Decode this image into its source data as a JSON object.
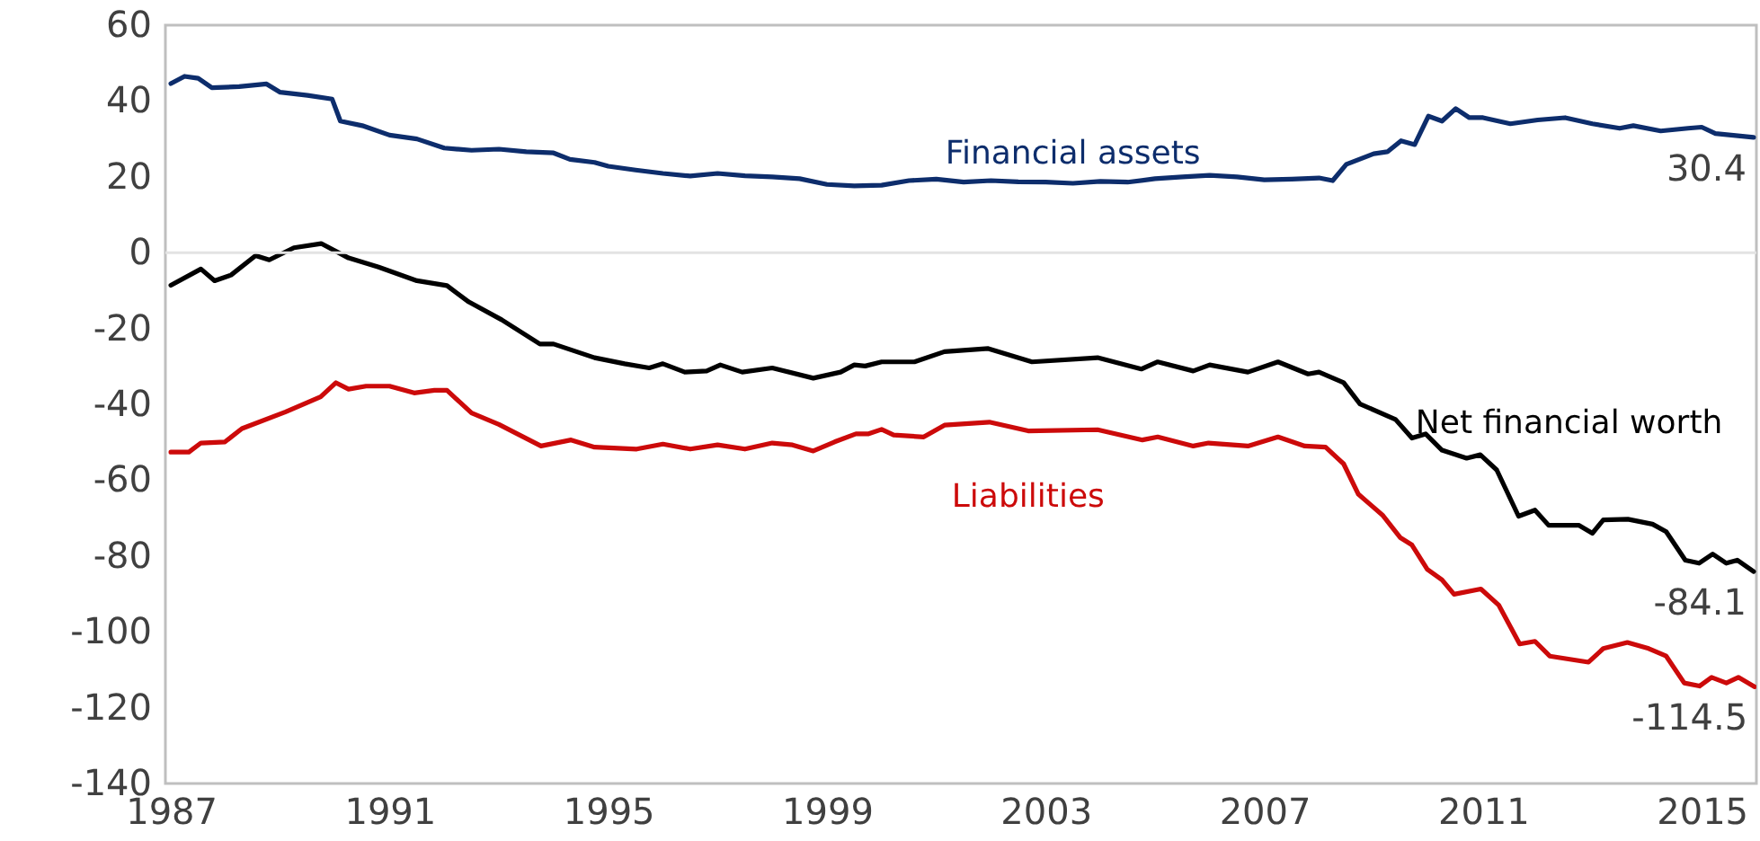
{
  "chart_data": {
    "type": "line",
    "xlim": [
      1986.9,
      2016.0
    ],
    "xticks": [
      1987,
      1991,
      1995,
      1999,
      2003,
      2007,
      2011,
      2015
    ],
    "ylim": [
      -140,
      60
    ],
    "yticks": [
      -140,
      -120,
      -100,
      -80,
      -60,
      -40,
      -20,
      0,
      20,
      40,
      60
    ],
    "ref_lines": [
      {
        "axis": "y",
        "value": 0,
        "color": "#e3e3e3"
      }
    ],
    "series": [
      {
        "name": "Financial assets",
        "color": "#0d2d6c",
        "x": [
          1987,
          1987.25,
          1987.5,
          1987.75,
          1988.25,
          1988.75,
          1989,
          1989.5,
          1989.95,
          1990.1,
          1990.5,
          1991,
          1991.5,
          1992,
          1992.5,
          1993,
          1993.5,
          1994,
          1994.3,
          1994.75,
          1995,
          1995.5,
          1996,
          1996.5,
          1997,
          1997.5,
          1998,
          1998.5,
          1999,
          1999.5,
          2000,
          2000.5,
          2001,
          2001.5,
          2002,
          2002.5,
          2003,
          2003.5,
          2004,
          2004.5,
          2005,
          2005.5,
          2006,
          2006.5,
          2007,
          2007.5,
          2008,
          2008.25,
          2008.5,
          2009,
          2009.25,
          2009.5,
          2009.75,
          2010,
          2010.25,
          2010.5,
          2010.75,
          2011,
          2011.5,
          2012,
          2012.5,
          2013,
          2013.5,
          2013.75,
          2014.25,
          2014.75,
          2015,
          2015.25,
          2015.95
        ],
        "value_labels": [
          null,
          null,
          null,
          null,
          null,
          null,
          null,
          null,
          null,
          null,
          null,
          null,
          null,
          null,
          null,
          null,
          null,
          null,
          null,
          null,
          null,
          null,
          null,
          null,
          null,
          null,
          null,
          null,
          null,
          null,
          null,
          null,
          null,
          null,
          null,
          null,
          null,
          null,
          null,
          null,
          null,
          null,
          null,
          null,
          null,
          null,
          null,
          null,
          null,
          null,
          null,
          null,
          null,
          null,
          null,
          null,
          null,
          null,
          null,
          null,
          null,
          null,
          null,
          null,
          null,
          null,
          null,
          null,
          "30.4"
        ],
        "values": [
          44.6,
          46.5,
          46,
          43.5,
          43.8,
          44.5,
          42.3,
          41.5,
          40.5,
          34.7,
          33.5,
          31,
          30,
          27.6,
          27,
          27.3,
          26.6,
          26.3,
          24.6,
          23.8,
          22.8,
          21.8,
          20.9,
          20.2,
          20.9,
          20.3,
          20,
          19.5,
          18,
          17.6,
          17.8,
          19,
          19.4,
          18.6,
          19,
          18.7,
          18.6,
          18.3,
          18.8,
          18.6,
          19.5,
          20,
          20.4,
          20,
          19.2,
          19.4,
          19.7,
          19,
          23.3,
          26.1,
          26.6,
          29.5,
          28.5,
          36,
          34.7,
          38,
          35.6,
          35.6,
          34,
          35,
          35.6,
          34,
          32.8,
          33.5,
          32.1,
          32.8,
          33.1,
          31.4,
          30.4
        ]
      },
      {
        "name": "Net financial worth",
        "color": "#000000",
        "x": [
          1987,
          1987.55,
          1987.8,
          1988.1,
          1988.55,
          1988.8,
          1989.25,
          1989.75,
          1990.25,
          1990.8,
          1991.5,
          1992.05,
          1992.45,
          1993.05,
          1993.75,
          1994,
          1994.75,
          1995.3,
          1995.75,
          1996,
          1996.4,
          1996.8,
          1997.05,
          1997.45,
          1998,
          1998.75,
          1999.25,
          1999.5,
          1999.7,
          2000,
          2000.6,
          2001.15,
          2001.95,
          2002.75,
          2003.95,
          2004.75,
          2005.05,
          2005.7,
          2006,
          2006.7,
          2007.25,
          2007.8,
          2008,
          2008.45,
          2008.75,
          2009.4,
          2009.7,
          2009.95,
          2010.25,
          2010.7,
          2010.95,
          2011.25,
          2011.65,
          2011.95,
          2012.2,
          2012.75,
          2013,
          2013.2,
          2013.65,
          2014.1,
          2014.35,
          2014.7,
          2014.95,
          2015.2,
          2015.45,
          2015.65,
          2015.95
        ],
        "value_labels": [
          null,
          null,
          null,
          null,
          null,
          null,
          null,
          null,
          null,
          null,
          null,
          null,
          null,
          null,
          null,
          null,
          null,
          null,
          null,
          null,
          null,
          null,
          null,
          null,
          null,
          null,
          null,
          null,
          null,
          null,
          null,
          null,
          null,
          null,
          null,
          null,
          null,
          null,
          null,
          null,
          null,
          null,
          null,
          null,
          null,
          null,
          null,
          null,
          null,
          null,
          null,
          null,
          null,
          null,
          null,
          null,
          null,
          null,
          null,
          null,
          null,
          null,
          null,
          null,
          null,
          null,
          "-84.1"
        ],
        "values": [
          -8.6,
          -4.3,
          -7.4,
          -5.9,
          -0.8,
          -1.9,
          1.3,
          2.4,
          -1.4,
          -3.8,
          -7.4,
          -8.7,
          -13,
          -17.7,
          -24.1,
          -24.1,
          -27.7,
          -29.3,
          -30.4,
          -29.3,
          -31.5,
          -31.2,
          -29.6,
          -31.5,
          -30.4,
          -33.1,
          -31.5,
          -29.6,
          -29.9,
          -28.8,
          -28.8,
          -26.1,
          -25.3,
          -28.8,
          -27.7,
          -30.7,
          -28.8,
          -31.2,
          -29.6,
          -31.5,
          -28.8,
          -32,
          -31.5,
          -34.3,
          -39.9,
          -44,
          -48.9,
          -47.8,
          -52.1,
          -54.2,
          -53.3,
          -57.3,
          -69.5,
          -67.9,
          -71.9,
          -71.9,
          -74,
          -70.5,
          -70.3,
          -71.6,
          -73.6,
          -81.1,
          -81.9,
          -79.5,
          -81.9,
          -81.1,
          -84.1
        ]
      },
      {
        "name": "Liabilities",
        "color": "#cc0a0a",
        "x": [
          1987,
          1987.33,
          1987.55,
          1987.99,
          1988.3,
          1989.1,
          1989.74,
          1990.02,
          1990.25,
          1990.57,
          1991,
          1991.45,
          1991.82,
          1992.05,
          1992.5,
          1993,
          1993.77,
          1994.32,
          1994.75,
          1995.52,
          1996,
          1996.5,
          1997,
          1997.5,
          1998,
          1998.37,
          1998.75,
          1999.14,
          1999.53,
          1999.75,
          2000,
          2000.22,
          2000.77,
          2001.15,
          2001.97,
          2002.68,
          2003.95,
          2004.77,
          2005.05,
          2005.7,
          2005.98,
          2006.7,
          2007.25,
          2007.74,
          2008.12,
          2008.45,
          2008.72,
          2009.16,
          2009.49,
          2009.7,
          2009.98,
          2010.25,
          2010.47,
          2010.96,
          2011.29,
          2011.67,
          2011.95,
          2012.22,
          2012.93,
          2013.2,
          2013.64,
          2014.03,
          2014.35,
          2014.68,
          2014.96,
          2015.18,
          2015.45,
          2015.67,
          2015.97
        ],
        "value_labels": [
          null,
          null,
          null,
          null,
          null,
          null,
          null,
          null,
          null,
          null,
          null,
          null,
          null,
          null,
          null,
          null,
          null,
          null,
          null,
          null,
          null,
          null,
          null,
          null,
          null,
          null,
          null,
          null,
          null,
          null,
          null,
          null,
          null,
          null,
          null,
          null,
          null,
          null,
          null,
          null,
          null,
          null,
          null,
          null,
          null,
          null,
          null,
          null,
          null,
          null,
          null,
          null,
          null,
          null,
          null,
          null,
          null,
          null,
          null,
          null,
          null,
          null,
          null,
          null,
          null,
          null,
          null,
          null,
          "-114.5"
        ],
        "values": [
          -52.6,
          -52.6,
          -50.2,
          -49.9,
          -46.4,
          -42,
          -38,
          -34.3,
          -36,
          -35.2,
          -35.2,
          -37,
          -36.3,
          -36.3,
          -42.3,
          -45.3,
          -51,
          -49.4,
          -51.3,
          -51.8,
          -50.5,
          -51.8,
          -50.7,
          -51.8,
          -50.2,
          -50.7,
          -52.3,
          -49.9,
          -47.8,
          -47.8,
          -46.6,
          -48.1,
          -48.6,
          -45.5,
          -44.7,
          -47,
          -46.7,
          -49.4,
          -48.6,
          -51,
          -50.2,
          -51,
          -48.6,
          -51,
          -51.3,
          -55.7,
          -63.7,
          -69.2,
          -75.2,
          -77.1,
          -83.5,
          -86.3,
          -90.1,
          -88.7,
          -93,
          -103.2,
          -102.5,
          -106.4,
          -108,
          -104.4,
          -102.8,
          -104.4,
          -106.4,
          -113.5,
          -114.3,
          -112,
          -113.5,
          -112,
          -114.5
        ]
      }
    ]
  }
}
